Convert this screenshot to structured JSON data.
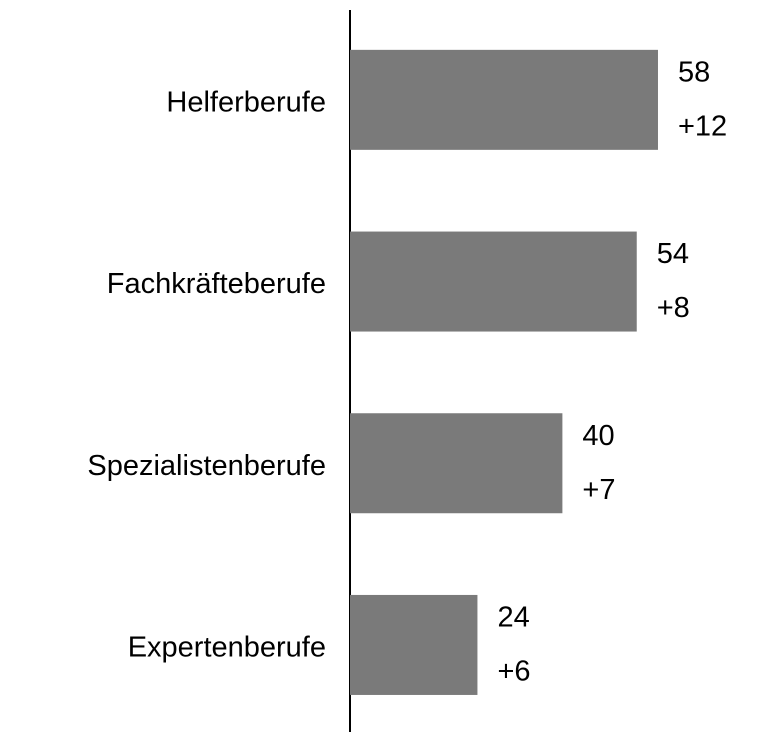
{
  "chart_data": {
    "type": "bar",
    "orientation": "horizontal",
    "categories": [
      "Helferberufe",
      "Fachkräfteberufe",
      "Spezialistenberufe",
      "Expertenberufe"
    ],
    "values": [
      58,
      54,
      40,
      24
    ],
    "annotations": [
      "+12",
      "+8",
      "+7",
      "+6"
    ],
    "color": "#7a7a7a",
    "annotation_color": "#ff0000",
    "xlim": [
      0,
      70
    ]
  }
}
